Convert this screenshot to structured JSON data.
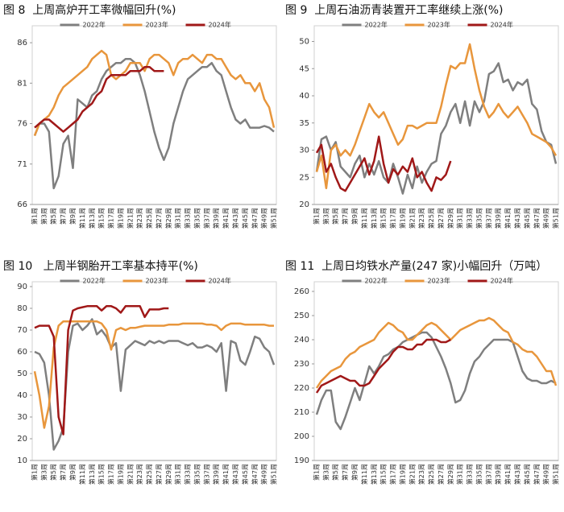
{
  "chart_data": [
    {
      "type": "line",
      "title": "图 8  上周高炉开工率微幅回升(%)",
      "categories": [
        "第1周",
        null,
        "第3周",
        null,
        "第5周",
        null,
        "第7周",
        null,
        "第9周",
        null,
        "第11周",
        null,
        "第13周",
        null,
        "第15周",
        null,
        "第17周",
        null,
        "第19周",
        null,
        "第21周",
        null,
        "第23周",
        null,
        "第25周",
        null,
        "第27周",
        null,
        "第29周",
        null,
        "第31周",
        null,
        "第33周",
        null,
        "第35周",
        null,
        "第37周",
        null,
        "第39周",
        null,
        "第41周",
        null,
        "第43周",
        null,
        "第45周",
        null,
        "第47周",
        null,
        "第49周",
        null,
        "第51周"
      ],
      "series": [
        {
          "name": "2022年",
          "color": "#7f7f7f",
          "values": [
            74.5,
            76,
            76,
            75,
            68,
            69.5,
            73.5,
            74.5,
            70.5,
            79,
            78.5,
            78,
            79.5,
            80,
            81.5,
            82.5,
            83,
            83.5,
            83.5,
            84,
            84,
            83.5,
            82,
            80,
            77.5,
            75,
            73,
            71.5,
            73,
            76,
            78,
            80,
            81.5,
            82,
            82.5,
            83,
            83,
            83.5,
            82.5,
            82,
            80,
            78,
            76.5,
            76,
            76.5,
            75.5,
            75.5,
            75.5,
            75.7,
            75.5,
            75
          ]
        },
        {
          "name": "2023年",
          "color": "#e8963c",
          "values": [
            74.5,
            76,
            76.5,
            77,
            78,
            79.5,
            80.5,
            81,
            81.5,
            82,
            82.5,
            83,
            84,
            84.5,
            85,
            84.5,
            82,
            81.5,
            82,
            82.5,
            83.5,
            83.5,
            83.5,
            82.5,
            84,
            84.5,
            84.5,
            84,
            83.5,
            82,
            83.5,
            84,
            84,
            84.5,
            84,
            83.5,
            84.5,
            84.5,
            84,
            84,
            83,
            82,
            81.5,
            82,
            81,
            81,
            80,
            81,
            79,
            78,
            75.5
          ]
        },
        {
          "name": "2024年",
          "color": "#a01818",
          "values": [
            75.5,
            76,
            76.5,
            76.5,
            76,
            75.5,
            75,
            75.5,
            76,
            76.5,
            77.5,
            78,
            78.5,
            79.5,
            80,
            81.5,
            82,
            82,
            82,
            82,
            82.5,
            82.5,
            82.5,
            83,
            83,
            82.5,
            82.5,
            82.5,
            null,
            null,
            null,
            null,
            null,
            null,
            null,
            null,
            null,
            null,
            null,
            null,
            null,
            null,
            null,
            null,
            null,
            null,
            null,
            null,
            null,
            null,
            null
          ]
        }
      ],
      "ylim": [
        66,
        87.5
      ],
      "yticks": [
        66,
        71,
        76,
        81,
        86
      ],
      "legend": "top"
    },
    {
      "type": "line",
      "title": "图 9  上周石油沥青装置开工率继续上涨(%)",
      "categories": [
        "第1周",
        null,
        "第3周",
        null,
        "第5周",
        null,
        "第7周",
        null,
        "第9周",
        null,
        "第11周",
        null,
        "第13周",
        null,
        "第15周",
        null,
        "第17周",
        null,
        "第19周",
        null,
        "第21周",
        null,
        "第23周",
        null,
        "第25周",
        null,
        "第27周",
        null,
        "第29周",
        null,
        "第31周",
        null,
        "第33周",
        null,
        "第35周",
        null,
        "第37周",
        null,
        "第39周",
        null,
        "第41周",
        null,
        "第43周",
        null,
        "第45周",
        null,
        "第47周",
        null,
        "第49周",
        null,
        "第51周"
      ],
      "series": [
        {
          "name": "2022年",
          "color": "#7f7f7f",
          "values": [
            26,
            32,
            32.5,
            30,
            31.5,
            27,
            26,
            25,
            27.5,
            29,
            25,
            27.5,
            25.5,
            28,
            25,
            24,
            27.5,
            25,
            22,
            25.5,
            23,
            27,
            24,
            26,
            27.5,
            28,
            33,
            34.5,
            37,
            38.5,
            35,
            39,
            34.5,
            39,
            37,
            39,
            44,
            44.5,
            46,
            42.5,
            43,
            41,
            42.5,
            42,
            43,
            38.5,
            37.5,
            33.5,
            31.5,
            31,
            27.5
          ]
        },
        {
          "name": "2023年",
          "color": "#e8963c",
          "values": [
            26,
            29,
            23,
            30,
            31,
            29,
            30,
            29,
            31,
            33.5,
            36,
            38.5,
            37,
            36,
            37,
            35,
            33,
            31,
            32,
            34.5,
            34.5,
            34,
            34.5,
            35,
            35,
            35,
            38,
            42,
            45.5,
            45,
            46,
            46,
            49.5,
            45,
            41,
            38,
            36,
            37,
            38.5,
            37,
            36,
            37,
            38,
            36.5,
            35,
            33,
            32.5,
            32,
            31.5,
            30.5,
            29
          ]
        },
        {
          "name": "2024年",
          "color": "#a01818",
          "values": [
            29.5,
            31,
            26,
            27.5,
            25,
            23,
            22.5,
            24,
            25.5,
            27,
            28.5,
            25.5,
            28,
            32.5,
            27.5,
            24,
            26.5,
            25.5,
            27,
            26,
            28.5,
            25,
            26,
            24,
            22.5,
            25,
            24.5,
            25.5,
            28,
            null,
            null,
            null,
            null,
            null,
            null,
            null,
            null,
            null,
            null,
            null,
            null,
            null,
            null,
            null,
            null,
            null,
            null,
            null,
            null,
            null,
            null
          ]
        }
      ],
      "ylim": [
        20,
        52
      ],
      "yticks": [
        20,
        25,
        30,
        35,
        40,
        45,
        50
      ],
      "legend": "top"
    },
    {
      "type": "line",
      "title": "图 10   上周半钢胎开工率基本持平(%)",
      "categories": [
        "第1周",
        null,
        "第3周",
        null,
        "第5周",
        null,
        "第7周",
        null,
        "第9周",
        null,
        "第11周",
        null,
        "第13周",
        null,
        "第15周",
        null,
        "第17周",
        null,
        "第19周",
        null,
        "第21周",
        null,
        "第23周",
        null,
        "第25周",
        null,
        "第27周",
        null,
        "第29周",
        null,
        "第31周",
        null,
        "第33周",
        null,
        "第35周",
        null,
        "第37周",
        null,
        "第39周",
        null,
        "第41周",
        null,
        "第43周",
        null,
        "第45周",
        null,
        "第47周",
        null,
        "第49周",
        null,
        "第51周"
      ],
      "series": [
        {
          "name": "2022年",
          "color": "#7f7f7f",
          "values": [
            60,
            59,
            55,
            40,
            15,
            19,
            25,
            60,
            72,
            73,
            70,
            72,
            75,
            68,
            70,
            67,
            62,
            64,
            42,
            61,
            63,
            65,
            64,
            63,
            65,
            64,
            65,
            64,
            65,
            65,
            65,
            64,
            63,
            64,
            62,
            62,
            63,
            62,
            60,
            64,
            42,
            65,
            64,
            56,
            54,
            60,
            67,
            66,
            62,
            60,
            54
          ]
        },
        {
          "name": "2023年",
          "color": "#e8963c",
          "values": [
            51,
            40,
            25,
            35,
            62,
            72,
            74,
            74,
            74,
            74,
            74,
            74,
            74,
            74,
            73,
            70,
            61,
            70,
            71,
            70,
            71,
            71,
            71.5,
            72,
            72,
            72,
            72,
            72,
            72.5,
            72.5,
            72.5,
            73,
            73,
            73,
            73,
            73,
            72.5,
            72.5,
            72,
            70,
            72,
            73,
            73,
            73,
            72.5,
            72.5,
            72.5,
            72.5,
            72.5,
            72,
            72
          ]
        },
        {
          "name": "2024年",
          "color": "#a01818",
          "values": [
            71,
            72,
            72,
            72,
            67,
            30,
            22,
            70,
            79,
            80,
            80.5,
            81,
            81,
            81,
            79,
            81,
            81,
            80,
            78,
            81,
            81,
            81,
            81,
            76,
            79.5,
            79.5,
            79.5,
            80,
            80,
            null,
            null,
            null,
            null,
            null,
            null,
            null,
            null,
            null,
            null,
            null,
            null,
            null,
            null,
            null,
            null,
            null,
            null,
            null,
            null,
            null,
            null
          ]
        }
      ],
      "ylim": [
        10,
        90
      ],
      "yticks": [
        10,
        20,
        30,
        40,
        50,
        60,
        70,
        80,
        90
      ],
      "legend": "top"
    },
    {
      "type": "line",
      "title": "图 11  上周日均铁水产量(247 家)小幅回升（万吨）",
      "categories": [
        "第1周",
        null,
        "第3周",
        null,
        "第5周",
        null,
        "第7周",
        null,
        "第9周",
        null,
        "第11周",
        null,
        "第13周",
        null,
        "第15周",
        null,
        "第17周",
        null,
        "第19周",
        null,
        "第21周",
        null,
        "第23周",
        null,
        "第25周",
        null,
        "第27周",
        null,
        "第29周",
        null,
        "第31周",
        null,
        "第33周",
        null,
        "第35周",
        null,
        "第37周",
        null,
        "第39周",
        null,
        "第41周",
        null,
        "第43周",
        null,
        "第45周",
        null,
        "第47周",
        null,
        "第49周",
        null,
        "第51周"
      ],
      "series": [
        {
          "name": "2022年",
          "color": "#7f7f7f",
          "values": [
            209,
            215,
            219,
            219,
            206,
            203,
            208,
            214,
            220,
            215,
            222,
            229,
            226,
            229,
            233,
            234,
            236,
            237,
            239,
            240,
            241,
            242,
            243,
            243,
            241,
            237,
            233,
            228,
            222,
            214,
            215,
            219,
            226,
            231,
            233,
            236,
            238,
            240,
            240,
            240,
            240,
            239,
            233,
            227,
            224,
            223,
            223,
            222,
            222,
            223,
            222
          ]
        },
        {
          "name": "2023年",
          "color": "#e8963c",
          "values": [
            220,
            223,
            225,
            227,
            228,
            229,
            232,
            234,
            235,
            237,
            238,
            239,
            240,
            243,
            245,
            247,
            246,
            244,
            243,
            240,
            240,
            242,
            244,
            246,
            247,
            246,
            244,
            242,
            240,
            242,
            244,
            245,
            246,
            247,
            248,
            248,
            249,
            248,
            246,
            244,
            243,
            239,
            238,
            236,
            235,
            235,
            233,
            230,
            227,
            227,
            221
          ]
        },
        {
          "name": "2024年",
          "color": "#a01818",
          "values": [
            218,
            221,
            222,
            223,
            224,
            225,
            224,
            223,
            223,
            221,
            221,
            222,
            225,
            228,
            230,
            232,
            235,
            237,
            237,
            236,
            236,
            238,
            238,
            240,
            240,
            240,
            239,
            239,
            240,
            null,
            null,
            null,
            null,
            null,
            null,
            null,
            null,
            null,
            null,
            null,
            null,
            null,
            null,
            null,
            null,
            null,
            null,
            null,
            null,
            null,
            null
          ]
        }
      ],
      "ylim": [
        190,
        262
      ],
      "yticks": [
        190,
        200,
        210,
        220,
        230,
        240,
        250,
        260
      ],
      "legend": "top"
    }
  ]
}
